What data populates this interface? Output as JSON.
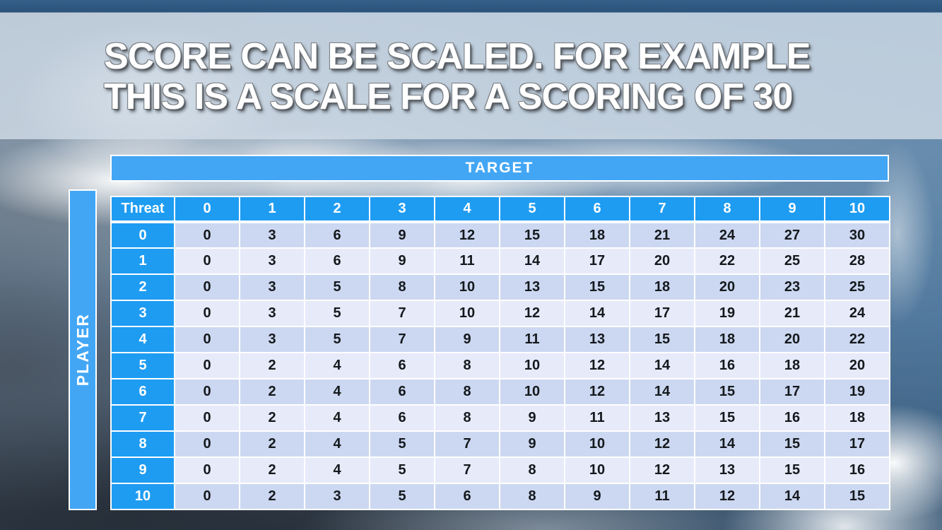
{
  "title": {
    "line1": "SCORE CAN BE SCALED. FOR EXAMPLE",
    "line2": "THIS IS A SCALE FOR A SCORING OF 30"
  },
  "table": {
    "target_label": "TARGET",
    "player_label": "PLAYER",
    "corner_label": "Threat",
    "column_headers": [
      "0",
      "1",
      "2",
      "3",
      "4",
      "5",
      "6",
      "7",
      "8",
      "9",
      "10"
    ],
    "rows": [
      {
        "label": "0",
        "values": [
          0,
          3,
          6,
          9,
          12,
          15,
          18,
          21,
          24,
          27,
          30
        ]
      },
      {
        "label": "1",
        "values": [
          0,
          3,
          6,
          9,
          11,
          14,
          17,
          20,
          22,
          25,
          28
        ]
      },
      {
        "label": "2",
        "values": [
          0,
          3,
          5,
          8,
          10,
          13,
          15,
          18,
          20,
          23,
          25
        ]
      },
      {
        "label": "3",
        "values": [
          0,
          3,
          5,
          7,
          10,
          12,
          14,
          17,
          19,
          21,
          24
        ]
      },
      {
        "label": "4",
        "values": [
          0,
          3,
          5,
          7,
          9,
          11,
          13,
          15,
          18,
          20,
          22
        ]
      },
      {
        "label": "5",
        "values": [
          0,
          2,
          4,
          6,
          8,
          10,
          12,
          14,
          16,
          18,
          20
        ]
      },
      {
        "label": "6",
        "values": [
          0,
          2,
          4,
          6,
          8,
          10,
          12,
          14,
          15,
          17,
          19
        ]
      },
      {
        "label": "7",
        "values": [
          0,
          2,
          4,
          6,
          8,
          9,
          11,
          13,
          15,
          16,
          18
        ]
      },
      {
        "label": "8",
        "values": [
          0,
          2,
          4,
          5,
          7,
          9,
          10,
          12,
          14,
          15,
          17
        ]
      },
      {
        "label": "9",
        "values": [
          0,
          2,
          4,
          5,
          7,
          8,
          10,
          12,
          13,
          15,
          16
        ]
      },
      {
        "label": "10",
        "values": [
          0,
          2,
          3,
          5,
          6,
          8,
          9,
          11,
          12,
          14,
          15
        ]
      }
    ]
  },
  "colors": {
    "accent_blue": "#1e9cf2",
    "bar_blue": "#42a6f5",
    "row_even": "#ccd8f1",
    "row_odd": "#e6eaf9",
    "top_bar": "#2c537a",
    "title_band": "#d1dce6"
  }
}
